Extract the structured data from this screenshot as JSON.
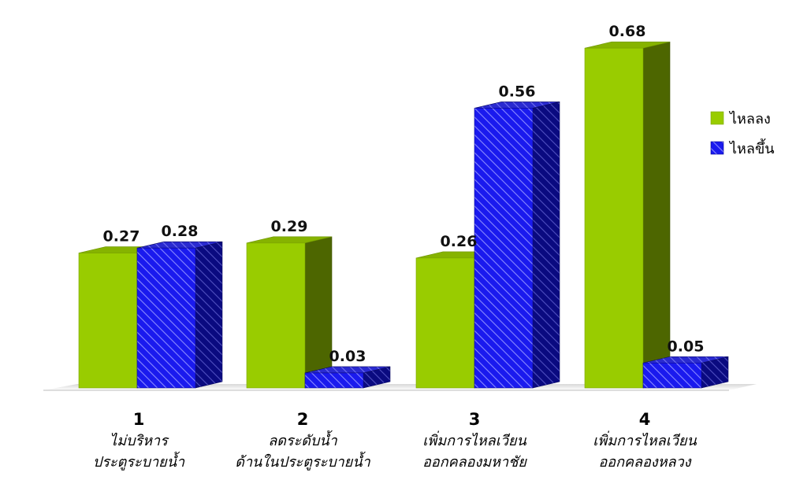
{
  "chart_data": {
    "type": "bar",
    "title": "",
    "xlabel": "",
    "ylabel": "",
    "ylim": [
      0,
      0.7
    ],
    "grid": false,
    "legend_position": "right",
    "categories": [
      {
        "number": "1",
        "lines": [
          "ไม่บริหาร",
          "ประตูระบายน้ำ"
        ]
      },
      {
        "number": "2",
        "lines": [
          "ลดระดับน้ำ",
          "ด้านในประตูระบายน้ำ"
        ]
      },
      {
        "number": "3",
        "lines": [
          "เพิ่มการไหลเวียน",
          "ออกคลองมหาชัย"
        ]
      },
      {
        "number": "4",
        "lines": [
          "เพิ่มการไหลเวียน",
          "ออกคลองหลวง"
        ]
      }
    ],
    "series": [
      {
        "name": "ไหลลง",
        "values": [
          0.27,
          0.29,
          0.26,
          0.68
        ],
        "labels": [
          "0.27",
          "0.29",
          "0.26",
          "0.68"
        ],
        "color": "#99cc00"
      },
      {
        "name": "ไหลขึ้น",
        "values": [
          0.28,
          0.03,
          0.56,
          0.05
        ],
        "labels": [
          "0.28",
          "0.03",
          "0.56",
          "0.05"
        ],
        "color": "#1a1aee"
      }
    ]
  }
}
